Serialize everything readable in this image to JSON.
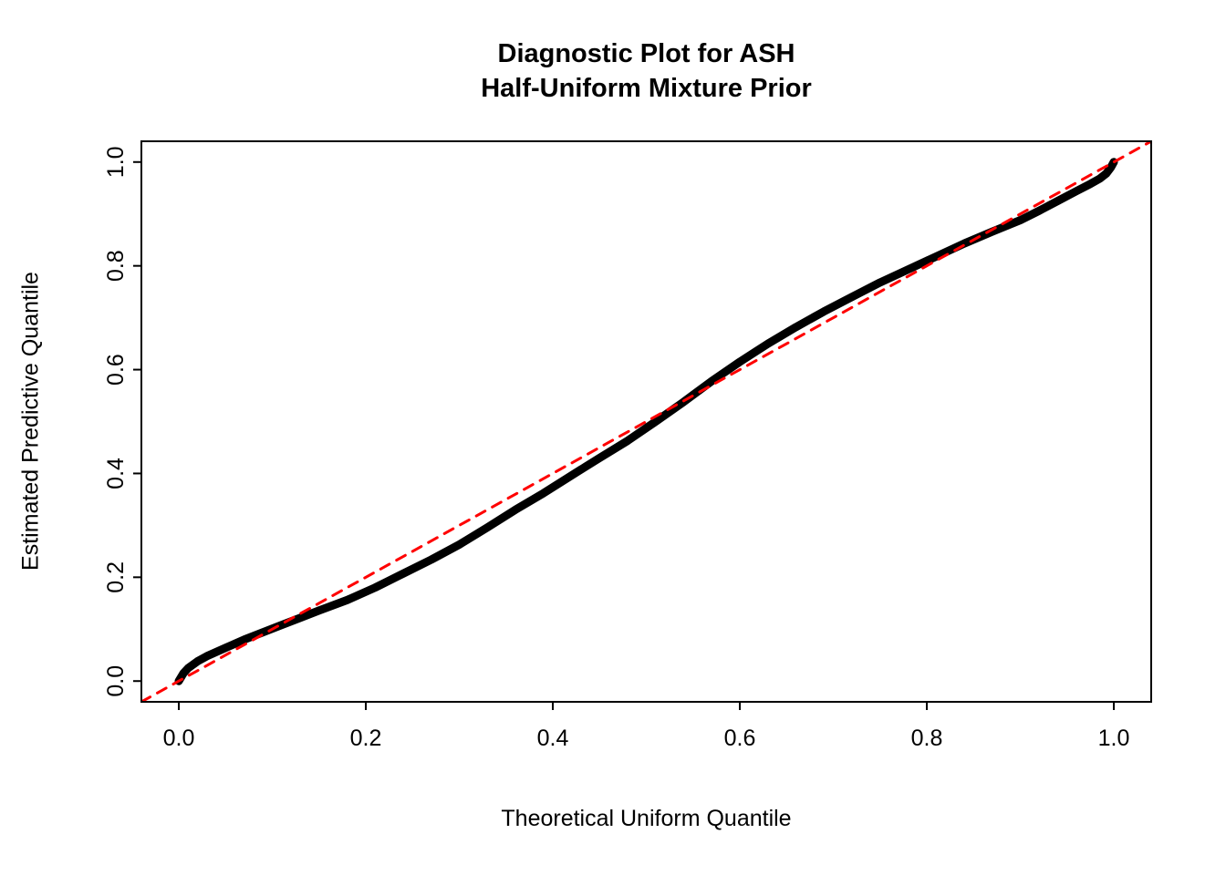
{
  "title": {
    "line1": "Diagnostic Plot for ASH",
    "line2": "Half-Uniform Mixture Prior"
  },
  "colors": {
    "background": "#ffffff",
    "axis": "#000000",
    "curve": "#000000",
    "reference_line": "#ff0000"
  },
  "chart_data": {
    "type": "line",
    "title": "Diagnostic Plot for ASH\nHalf-Uniform Mixture Prior",
    "xlabel": "Theoretical Uniform Quantile",
    "ylabel": "Estimated Predictive Quantile",
    "xlim": [
      -0.04,
      1.04
    ],
    "ylim": [
      -0.04,
      1.04
    ],
    "grid": false,
    "legend": "none",
    "x_ticks": [
      0.0,
      0.2,
      0.4,
      0.6,
      0.8,
      1.0
    ],
    "y_ticks": [
      0.0,
      0.2,
      0.4,
      0.6,
      0.8,
      1.0
    ],
    "x_tick_labels": [
      "0.0",
      "0.2",
      "0.4",
      "0.6",
      "0.8",
      "1.0"
    ],
    "y_tick_labels": [
      "0.0",
      "0.2",
      "0.4",
      "0.6",
      "0.8",
      "1.0"
    ],
    "series": [
      {
        "name": "estimated-predictive-quantile-curve",
        "color": "#000000",
        "style": "solid",
        "line_width": 9,
        "x": [
          0.0,
          0.005,
          0.01,
          0.02,
          0.03,
          0.05,
          0.07,
          0.09,
          0.11,
          0.13,
          0.15,
          0.18,
          0.21,
          0.24,
          0.27,
          0.3,
          0.33,
          0.36,
          0.39,
          0.42,
          0.45,
          0.48,
          0.51,
          0.54,
          0.57,
          0.6,
          0.63,
          0.66,
          0.69,
          0.72,
          0.75,
          0.78,
          0.81,
          0.84,
          0.87,
          0.9,
          0.92,
          0.94,
          0.96,
          0.975,
          0.985,
          0.992,
          0.997,
          1.0
        ],
        "y": [
          0.0,
          0.015,
          0.025,
          0.038,
          0.048,
          0.064,
          0.08,
          0.094,
          0.108,
          0.122,
          0.136,
          0.156,
          0.18,
          0.207,
          0.234,
          0.263,
          0.296,
          0.33,
          0.362,
          0.396,
          0.43,
          0.463,
          0.5,
          0.538,
          0.578,
          0.615,
          0.65,
          0.682,
          0.712,
          0.74,
          0.768,
          0.793,
          0.818,
          0.843,
          0.866,
          0.888,
          0.906,
          0.925,
          0.944,
          0.958,
          0.968,
          0.978,
          0.99,
          1.0
        ]
      },
      {
        "name": "reference-diagonal-line",
        "color": "#ff0000",
        "style": "dashed",
        "line_width": 3,
        "x": [
          -0.04,
          1.04
        ],
        "y": [
          -0.04,
          1.04
        ]
      }
    ]
  }
}
